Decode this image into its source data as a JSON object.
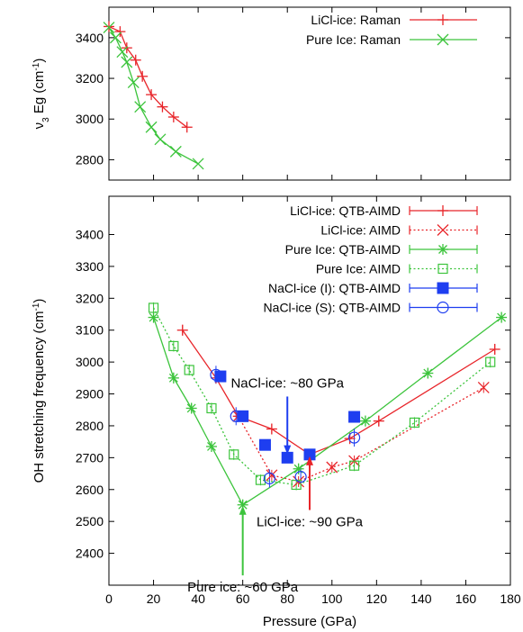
{
  "chart_data": [
    {
      "type": "line",
      "ylabel": "ν3 Eg (cm-1)",
      "xlim": [
        0,
        180
      ],
      "ylim": [
        2700,
        3550
      ],
      "yticks": [
        2800,
        3000,
        3200,
        3400
      ],
      "legend_position": "top-right",
      "series": [
        {
          "name": "LiCl-ice: Raman",
          "color": "#e8252a",
          "marker": "plus",
          "line": "solid",
          "x": [
            0,
            5,
            8,
            12,
            15,
            19,
            24,
            29,
            35
          ],
          "y": [
            3455,
            3430,
            3350,
            3290,
            3210,
            3120,
            3060,
            3010,
            2960
          ]
        },
        {
          "name": "Pure Ice: Raman",
          "color": "#3cc43c",
          "marker": "x",
          "line": "solid",
          "x": [
            0,
            3,
            6,
            8,
            11,
            14,
            19,
            23,
            30,
            40
          ],
          "y": [
            3450,
            3400,
            3330,
            3280,
            3180,
            3060,
            2960,
            2900,
            2840,
            2780
          ]
        }
      ]
    },
    {
      "type": "line",
      "xlabel": "Pressure (GPa)",
      "ylabel": "OH stretching frequency (cm-1)",
      "xlim": [
        0,
        180
      ],
      "ylim": [
        2300,
        3520
      ],
      "xticks": [
        0,
        20,
        40,
        60,
        80,
        100,
        120,
        140,
        160,
        180
      ],
      "yticks": [
        2400,
        2500,
        2600,
        2700,
        2800,
        2900,
        3000,
        3100,
        3200,
        3300,
        3400
      ],
      "legend_position": "top-right",
      "annotations": [
        {
          "text": "NaCl-ice: ~80 GPa",
          "x": 80,
          "y": 2705,
          "text_x": 80,
          "text_y": 2920
        },
        {
          "text": "LiCl-ice: ~90 GPa",
          "x": 90,
          "y": 2710,
          "text_x": 90,
          "text_y": 2485
        },
        {
          "text": "Pure ice: ~60 GPa",
          "x": 60,
          "y": 2555,
          "text_x": 60,
          "text_y": 2280
        }
      ],
      "series": [
        {
          "name": "LiCl-ice: QTB-AIMD",
          "color": "#e8252a",
          "marker": "plus",
          "line": "solid",
          "x": [
            33,
            48,
            58,
            73,
            90,
            108,
            121,
            173
          ],
          "y": [
            3100,
            2950,
            2830,
            2790,
            2710,
            2760,
            2815,
            3040
          ]
        },
        {
          "name": "LiCl-ice: AIMD",
          "color": "#e8252a",
          "marker": "x",
          "line": "dotted",
          "x": [
            58,
            73,
            85,
            100,
            110,
            168
          ],
          "y": [
            2830,
            2645,
            2625,
            2670,
            2690,
            2920
          ]
        },
        {
          "name": "Pure Ice: QTB-AIMD",
          "color": "#3cc43c",
          "marker": "star",
          "line": "solid",
          "x": [
            20,
            29,
            37,
            46,
            60,
            85,
            115,
            143,
            176
          ],
          "y": [
            3140,
            2950,
            2855,
            2735,
            2552,
            2665,
            2815,
            2965,
            3140
          ]
        },
        {
          "name": "Pure Ice: AIMD",
          "color": "#3cc43c",
          "marker": "square-open",
          "line": "dotted",
          "x": [
            20,
            29,
            36,
            46,
            56,
            68,
            84,
            110,
            137,
            171
          ],
          "y": [
            3170,
            3050,
            2975,
            2855,
            2710,
            2630,
            2615,
            2675,
            2810,
            3000
          ]
        },
        {
          "name": "NaCl-ice (I): QTB-AIMD",
          "color": "#1e3ef0",
          "marker": "square-filled",
          "line": "none",
          "x": [
            50,
            60,
            70,
            80,
            90,
            110
          ],
          "y": [
            2955,
            2830,
            2740,
            2700,
            2710,
            2828
          ]
        },
        {
          "name": "NaCl-ice (S): QTB-AIMD",
          "color": "#1e3ef0",
          "marker": "circle-open",
          "line": "none",
          "x": [
            48,
            57,
            72,
            86,
            110
          ],
          "y": [
            2960,
            2830,
            2635,
            2640,
            2763
          ]
        }
      ]
    }
  ]
}
